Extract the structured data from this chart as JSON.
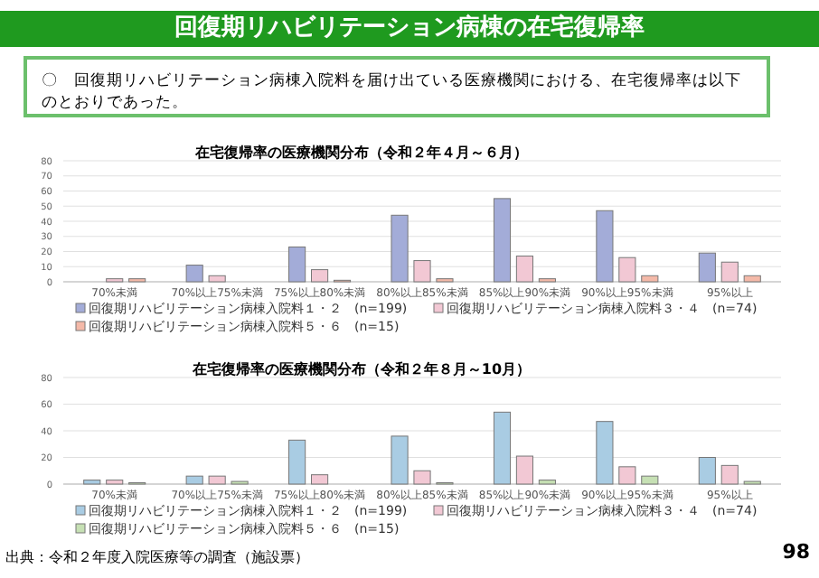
{
  "chart_data": [
    {
      "type": "bar",
      "title": "在宅復帰率の医療機関分布（令和２年４月～６月）",
      "categories": [
        "70%未満",
        "70%以上75%未満",
        "75%以上80%未満",
        "80%以上85%未満",
        "85%以上90%未満",
        "90%以上95%未満",
        "95%以上"
      ],
      "series": [
        {
          "name": "回復期リハビリテーション病棟入院料１・２　(n=199)",
          "color": "#a3acd8",
          "values": [
            0,
            11,
            23,
            44,
            55,
            47,
            19
          ]
        },
        {
          "name": "回復期リハビリテーション病棟入院料３・４　(n=74)",
          "color": "#f2c8d4",
          "values": [
            2,
            4,
            8,
            14,
            17,
            16,
            13
          ]
        },
        {
          "name": "回復期リハビリテーション病棟入院料５・６　(n=15)",
          "color": "#f4b9a8",
          "values": [
            2,
            0,
            1,
            2,
            2,
            4,
            4
          ]
        }
      ],
      "ylim": [
        0,
        80
      ],
      "yticks": [
        0,
        10,
        20,
        30,
        40,
        50,
        60,
        70,
        80
      ],
      "grid": "y",
      "legend": "bottom",
      "annotations": [
        "回復期リハビリテーション病棟の在宅復帰率",
        "〇　回復期リハビリテーション病棟入院料を届け出ている医療機関における、在宅復帰率は以下のとおりであった。"
      ]
    },
    {
      "type": "bar",
      "title": "在宅復帰率の医療機関分布（令和２年８月～10月）",
      "categories": [
        "70%未満",
        "70%以上75%未満",
        "75%以上80%未満",
        "80%以上85%未満",
        "85%以上90%未満",
        "90%以上95%未満",
        "95%以上"
      ],
      "series": [
        {
          "name": "回復期リハビリテーション病棟入院料１・２　(n=199)",
          "color": "#a9cce3",
          "values": [
            3,
            6,
            33,
            36,
            54,
            47,
            20
          ]
        },
        {
          "name": "回復期リハビリテーション病棟入院料３・４　(n=74)",
          "color": "#f2c8d4",
          "values": [
            3,
            6,
            7,
            10,
            21,
            13,
            14
          ]
        },
        {
          "name": "回復期リハビリテーション病棟入院料５・６　(n=15)",
          "color": "#c6e0b4",
          "values": [
            1,
            2,
            0,
            1,
            3,
            6,
            2
          ]
        }
      ],
      "ylim": [
        0,
        80
      ],
      "yticks": [
        0,
        20,
        40,
        60,
        80
      ],
      "grid": "y",
      "legend": "bottom",
      "annotations": [
        "出典：令和２年度入院医療等の調査（施設票）",
        "98"
      ]
    }
  ]
}
